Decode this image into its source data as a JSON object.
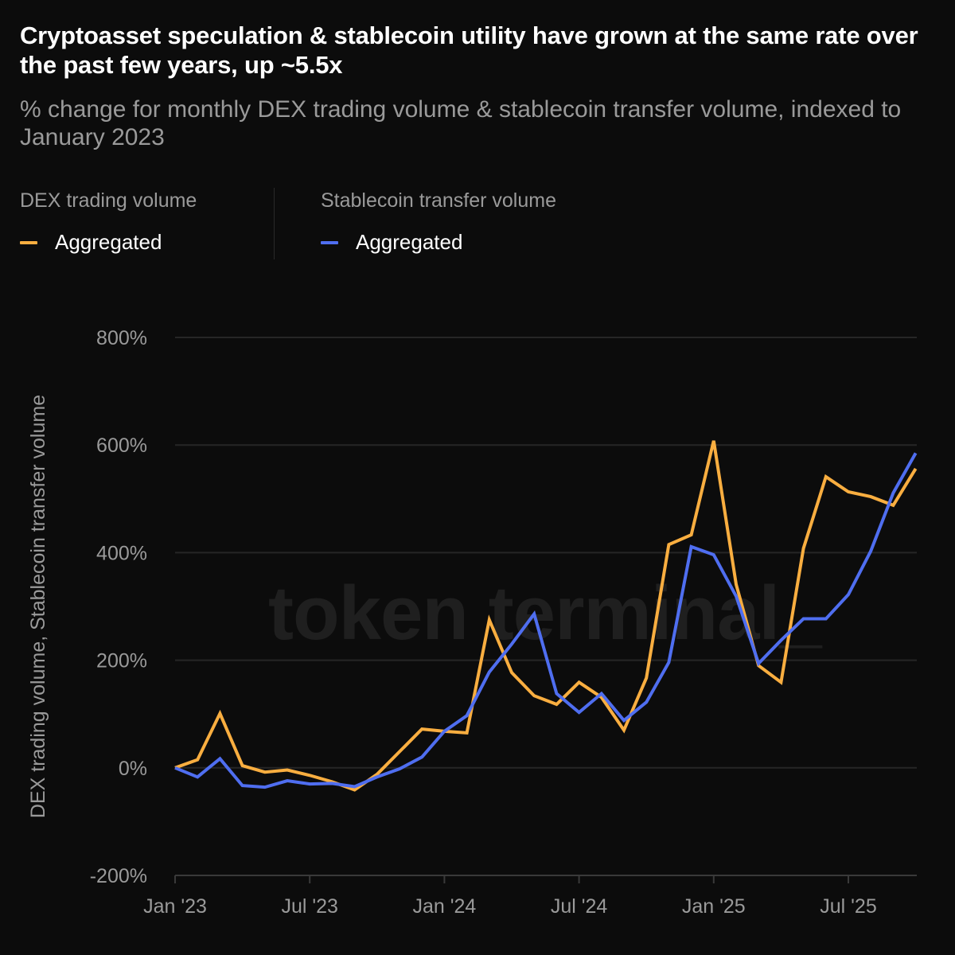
{
  "title": "Cryptoasset speculation & stablecoin utility have grown at the same rate over the past few years, up ~5.5x",
  "subtitle": "% change for monthly DEX trading volume & stablecoin transfer volume, indexed to January 2023",
  "legend": {
    "groups": [
      {
        "heading": "DEX trading volume",
        "item": "Aggregated",
        "color": "#f9ae40"
      },
      {
        "heading": "Stablecoin transfer volume",
        "item": "Aggregated",
        "color": "#4f6ef0"
      }
    ]
  },
  "watermark": "token terminal_",
  "chart_data": {
    "type": "line",
    "ylabel": "DEX trading volume, Stablecoin transfer volume",
    "xlabel": "",
    "ylim": [
      -200,
      800
    ],
    "yticks": [
      -200,
      0,
      200,
      400,
      600,
      800
    ],
    "ytick_labels": [
      "-200%",
      "0%",
      "200%",
      "400%",
      "600%",
      "800%"
    ],
    "xtick_labels": [
      "Jan '23",
      "Jul '23",
      "Jan '24",
      "Jul '24",
      "Jan '25",
      "Jul '25"
    ],
    "xtick_months": [
      "2023-01",
      "2023-07",
      "2024-01",
      "2024-07",
      "2025-01",
      "2025-07"
    ],
    "grid": "horizontal",
    "legend_placement": "top-left",
    "x": [
      "2023-01",
      "2023-02",
      "2023-03",
      "2023-04",
      "2023-05",
      "2023-06",
      "2023-07",
      "2023-08",
      "2023-09",
      "2023-10",
      "2023-11",
      "2023-12",
      "2024-01",
      "2024-02",
      "2024-03",
      "2024-04",
      "2024-05",
      "2024-06",
      "2024-07",
      "2024-08",
      "2024-09",
      "2024-10",
      "2024-11",
      "2024-12",
      "2025-01",
      "2025-02",
      "2025-03",
      "2025-04",
      "2025-05",
      "2025-06",
      "2025-07",
      "2025-08",
      "2025-09",
      "2025-10"
    ],
    "series": [
      {
        "name": "DEX trading volume — Aggregated",
        "color": "#f9ae40",
        "values": [
          0,
          15,
          101,
          4,
          -8,
          -4,
          -14,
          -26,
          -41,
          -12,
          30,
          72,
          68,
          65,
          275,
          177,
          134,
          118,
          159,
          131,
          70,
          167,
          415,
          433,
          608,
          341,
          190,
          159,
          408,
          541,
          513,
          504,
          488,
          556
        ]
      },
      {
        "name": "Stablecoin transfer volume — Aggregated",
        "color": "#4f6ef0",
        "values": [
          0,
          -17,
          17,
          -33,
          -36,
          -24,
          -30,
          -29,
          -35,
          -17,
          -2,
          20,
          68,
          97,
          178,
          230,
          286,
          138,
          103,
          138,
          88,
          122,
          196,
          411,
          396,
          319,
          194,
          237,
          277,
          277,
          322,
          403,
          511,
          585
        ]
      }
    ]
  }
}
